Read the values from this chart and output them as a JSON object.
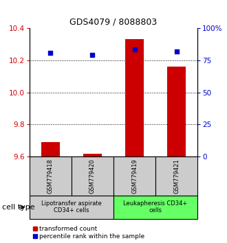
{
  "title": "GDS4079 / 8088803",
  "samples": [
    "GSM779418",
    "GSM779420",
    "GSM779419",
    "GSM779421"
  ],
  "transformed_counts": [
    9.69,
    9.62,
    10.33,
    10.16
  ],
  "percentile_ranks": [
    80.5,
    79.0,
    83.5,
    81.5
  ],
  "ylim_left": [
    9.6,
    10.4
  ],
  "ylim_right": [
    0,
    100
  ],
  "yticks_left": [
    9.6,
    9.8,
    10.0,
    10.2,
    10.4
  ],
  "yticks_right": [
    0,
    25,
    50,
    75,
    100
  ],
  "ytick_labels_right": [
    "0",
    "25",
    "50",
    "75",
    "100%"
  ],
  "bar_color": "#cc0000",
  "dot_color": "#0000cc",
  "bar_bottom": 9.6,
  "groups": [
    {
      "label": "Lipotransfer aspirate\nCD34+ cells",
      "color": "#cccccc"
    },
    {
      "label": "Leukapheresis CD34+\ncells",
      "color": "#66ff66"
    }
  ],
  "cell_type_label": "cell type",
  "legend_bar_label": "transformed count",
  "legend_dot_label": "percentile rank within the sample",
  "label_color_left": "#cc0000",
  "label_color_right": "#0000cc",
  "title_fontsize": 9,
  "tick_fontsize": 7.5,
  "sample_fontsize": 6,
  "group_fontsize": 6,
  "legend_fontsize": 6.5,
  "cell_type_fontsize": 8
}
